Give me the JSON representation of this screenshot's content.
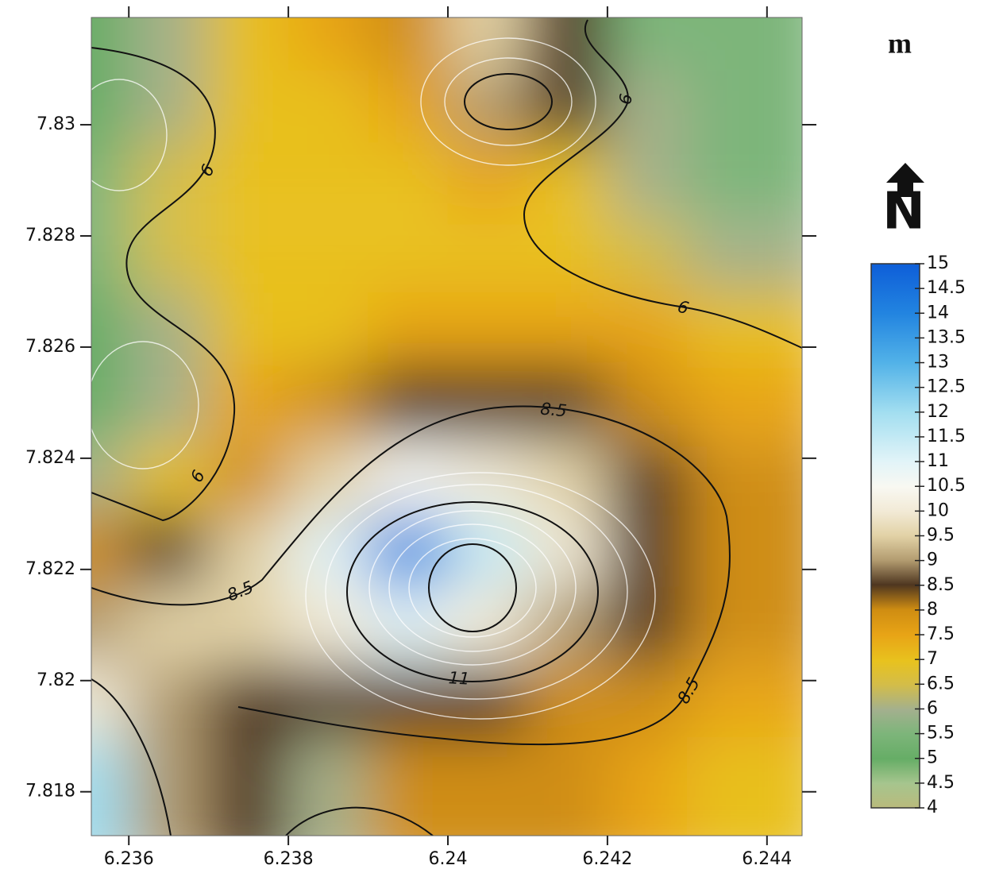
{
  "chart_data": {
    "type": "contour",
    "title": "m",
    "north_label": "N",
    "x": [
      6.2355,
      6.2365,
      6.2375,
      6.2385,
      6.2395,
      6.2405,
      6.2415,
      6.2425,
      6.2435
    ],
    "y": [
      7.8316,
      7.8303,
      7.829,
      7.8276,
      7.8263,
      7.825,
      7.8236,
      7.8223,
      7.821,
      7.8196,
      7.8183
    ],
    "z": [
      [
        5,
        6,
        7,
        7.5,
        8,
        9.5,
        8.5,
        5.5,
        5.5
      ],
      [
        5,
        6,
        7,
        7,
        7.5,
        9,
        8.5,
        6,
        5.5
      ],
      [
        5.5,
        6.5,
        7,
        7,
        7,
        7.5,
        7,
        6,
        5.5
      ],
      [
        5.5,
        6.5,
        7,
        7,
        7,
        7,
        7,
        6.5,
        6
      ],
      [
        5,
        6,
        7,
        7,
        7.5,
        7.5,
        7.5,
        7.5,
        7
      ],
      [
        5,
        6,
        7.5,
        8,
        8.5,
        8.5,
        8.5,
        8,
        7.5
      ],
      [
        6,
        7,
        8,
        9.5,
        10.5,
        10,
        9.5,
        8.5,
        8
      ],
      [
        8,
        8.5,
        9.5,
        11,
        14,
        11.5,
        10,
        8.5,
        8
      ],
      [
        9,
        9.5,
        9.5,
        10,
        11,
        10,
        9,
        8.5,
        8
      ],
      [
        10,
        9,
        8.5,
        8.5,
        8.5,
        8.5,
        8,
        8,
        7.5
      ],
      [
        12,
        9,
        8.5,
        6,
        8,
        8,
        8,
        7.5,
        7
      ]
    ],
    "contour_labels": [
      6,
      6,
      6,
      6,
      8.5,
      8.5,
      8.5,
      11
    ],
    "xlim": [
      6.23553,
      6.24444
    ],
    "xticks": [
      6.236,
      6.238,
      6.24,
      6.242,
      6.244
    ],
    "ylim": [
      7.81721,
      7.83193
    ],
    "yticks": [
      7.818,
      7.82,
      7.822,
      7.824,
      7.826,
      7.828,
      7.83
    ],
    "zlim": [
      4,
      15
    ],
    "zticks": [
      4,
      4.5,
      5,
      5.5,
      6,
      6.5,
      7,
      7.5,
      8,
      8.5,
      9,
      9.5,
      10,
      10.5,
      11,
      11.5,
      12,
      12.5,
      13,
      13.5,
      14,
      14.5,
      15
    ]
  }
}
